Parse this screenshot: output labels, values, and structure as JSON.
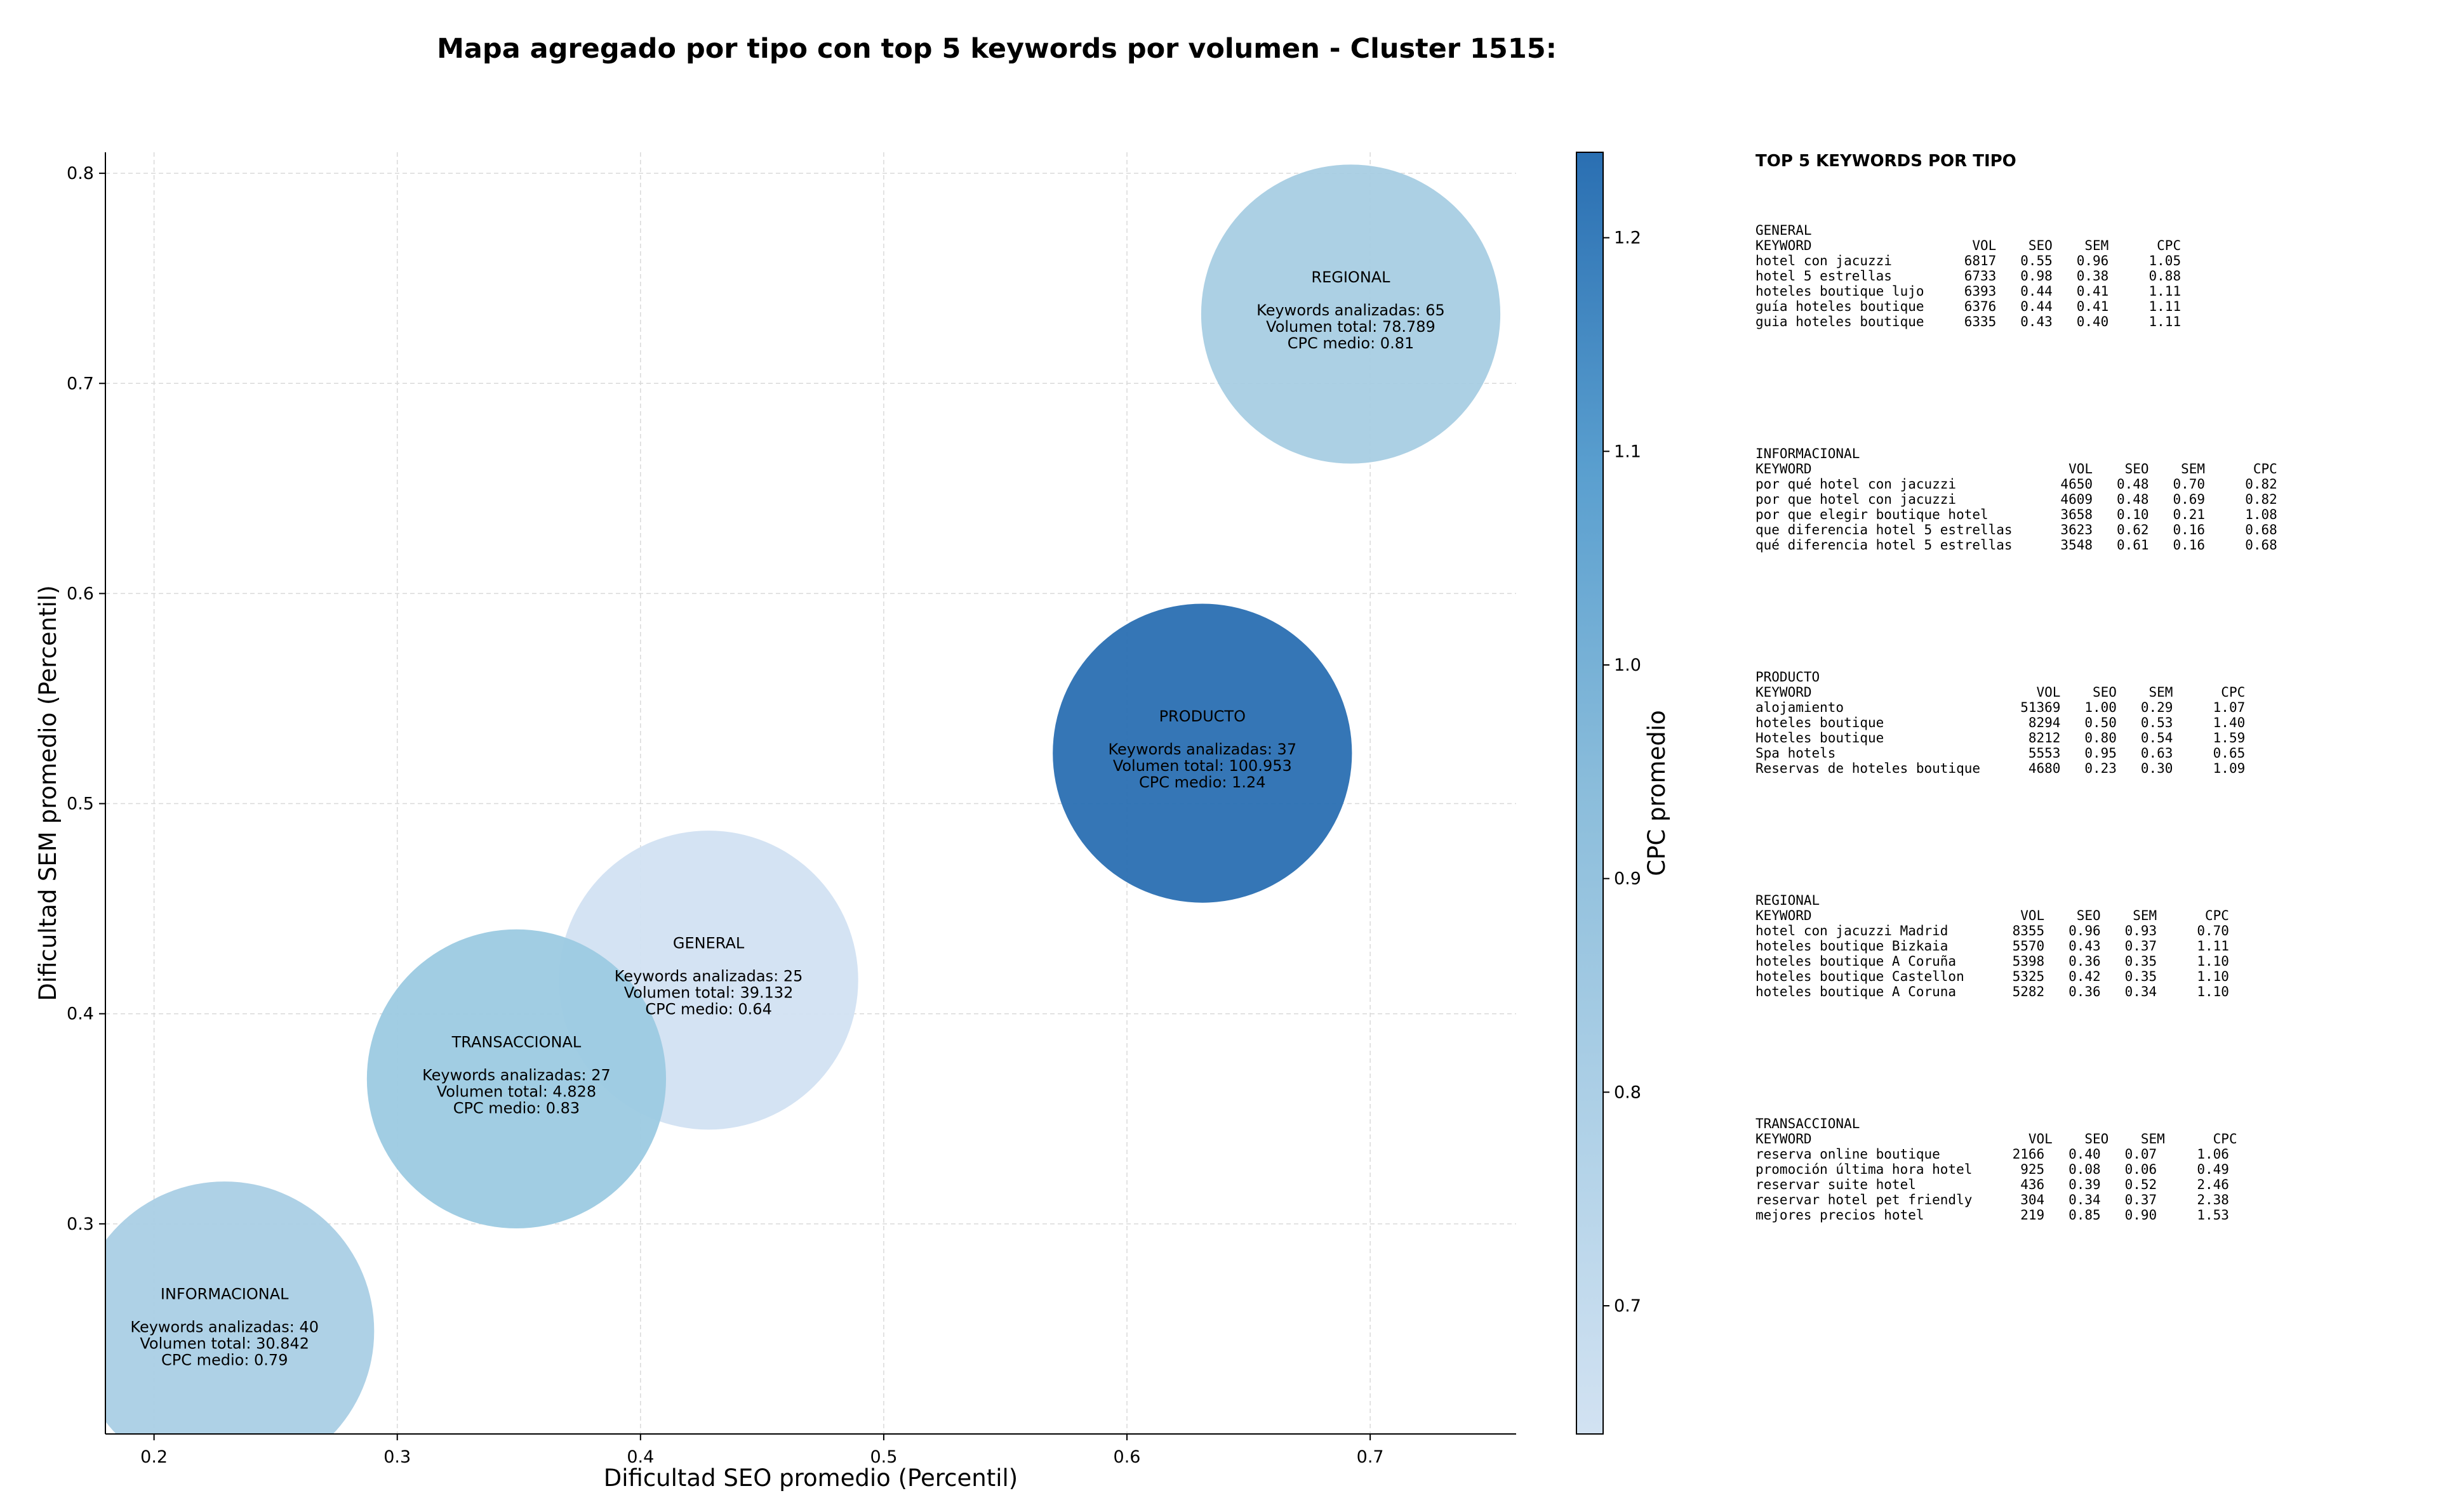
{
  "chart_data": {
    "type": "scatter",
    "title": "Mapa agregado por tipo con top 5 keywords por volumen - Cluster 1515:",
    "xlabel": "Dificultad SEO promedio (Percentil)",
    "ylabel": "Dificultad SEM promedio (Percentil)",
    "xlim": [
      0.18,
      0.76
    ],
    "ylim": [
      0.2,
      0.81
    ],
    "xticks": [
      "0.2",
      "0.3",
      "0.4",
      "0.5",
      "0.6",
      "0.7"
    ],
    "yticks": [
      "0.3",
      "0.4",
      "0.5",
      "0.6",
      "0.7",
      "0.8"
    ],
    "grid": true,
    "colorbar": {
      "label": "CPC promedio",
      "range": [
        0.64,
        1.24
      ],
      "ticks": [
        "0.7",
        "0.8",
        "0.9",
        "1.0",
        "1.1",
        "1.2"
      ],
      "colormap": "Blues"
    },
    "bubbles": [
      {
        "name": "REGIONAL",
        "x": 0.692,
        "y": 0.733,
        "cpc": 0.81,
        "line1": "Keywords analizadas: 65",
        "line2": "Volumen total: 78.789",
        "line3": "CPC medio: 0.81",
        "color": "#a8cde3"
      },
      {
        "name": "PRODUCTO",
        "x": 0.631,
        "y": 0.524,
        "cpc": 1.24,
        "line1": "Keywords analizadas: 37",
        "line2": "Volumen total: 100.953",
        "line3": "CPC medio: 1.24",
        "color": "#2a6fb2"
      },
      {
        "name": "GENERAL",
        "x": 0.428,
        "y": 0.416,
        "cpc": 0.64,
        "line1": "Keywords analizadas: 25",
        "line2": "Volumen total: 39.132",
        "line3": "CPC medio: 0.64",
        "color": "#d2e2f2"
      },
      {
        "name": "TRANSACCIONAL",
        "x": 0.349,
        "y": 0.369,
        "cpc": 0.83,
        "line1": "Keywords analizadas: 27",
        "line2": "Volumen total: 4.828",
        "line3": "CPC medio: 0.83",
        "color": "#9ccae1"
      },
      {
        "name": "INFORMACIONAL",
        "x": 0.229,
        "y": 0.249,
        "cpc": 0.79,
        "line1": "Keywords analizadas: 40",
        "line2": "Volumen total: 30.842",
        "line3": "CPC medio: 0.79",
        "color": "#aacfe5"
      }
    ]
  },
  "panel": {
    "title": "TOP 5 KEYWORDS POR TIPO",
    "blocks": [
      {
        "lines": [
          "GENERAL",
          "KEYWORD                    VOL    SEO    SEM      CPC",
          "hotel con jacuzzi         6817   0.55   0.96     1.05",
          "hotel 5 estrellas         6733   0.98   0.38     0.88",
          "hoteles boutique lujo     6393   0.44   0.41     1.11",
          "guía hoteles boutique     6376   0.44   0.41     1.11",
          "guia hoteles boutique     6335   0.43   0.40     1.11"
        ]
      },
      {
        "lines": [
          "INFORMACIONAL",
          "KEYWORD                                VOL    SEO    SEM      CPC",
          "por qué hotel con jacuzzi             4650   0.48   0.70     0.82",
          "por que hotel con jacuzzi             4609   0.48   0.69     0.82",
          "por que elegir boutique hotel         3658   0.10   0.21     1.08",
          "que diferencia hotel 5 estrellas      3623   0.62   0.16     0.68",
          "qué diferencia hotel 5 estrellas      3548   0.61   0.16     0.68"
        ]
      },
      {
        "lines": [
          "PRODUCTO",
          "KEYWORD                            VOL    SEO    SEM      CPC",
          "alojamiento                      51369   1.00   0.29     1.07",
          "hoteles boutique                  8294   0.50   0.53     1.40",
          "Hoteles boutique                  8212   0.80   0.54     1.59",
          "Spa hotels                        5553   0.95   0.63     0.65",
          "Reservas de hoteles boutique      4680   0.23   0.30     1.09"
        ]
      },
      {
        "lines": [
          "REGIONAL",
          "KEYWORD                          VOL    SEO    SEM      CPC",
          "hotel con jacuzzi Madrid        8355   0.96   0.93     0.70",
          "hoteles boutique Bizkaia        5570   0.43   0.37     1.11",
          "hoteles boutique A Coruña       5398   0.36   0.35     1.10",
          "hoteles boutique Castellon      5325   0.42   0.35     1.10",
          "hoteles boutique A Coruna       5282   0.36   0.34     1.10"
        ]
      },
      {
        "lines": [
          "TRANSACCIONAL",
          "KEYWORD                           VOL    SEO    SEM      CPC",
          "reserva online boutique         2166   0.40   0.07     1.06",
          "promoción última hora hotel      925   0.08   0.06     0.49",
          "reservar suite hotel             436   0.39   0.52     2.46",
          "reservar hotel pet friendly      304   0.34   0.37     2.38",
          "mejores precios hotel            219   0.85   0.90     1.53"
        ]
      }
    ]
  }
}
